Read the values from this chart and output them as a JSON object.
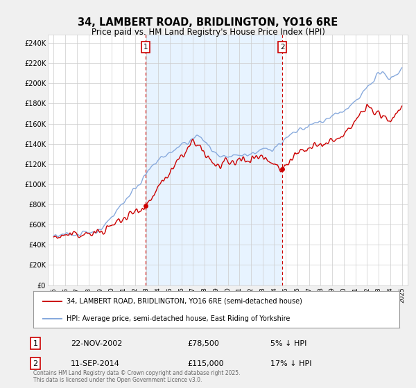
{
  "title": "34, LAMBERT ROAD, BRIDLINGTON, YO16 6RE",
  "subtitle": "Price paid vs. HM Land Registry's House Price Index (HPI)",
  "ylabel_ticks": [
    "£0",
    "£20K",
    "£40K",
    "£60K",
    "£80K",
    "£100K",
    "£120K",
    "£140K",
    "£160K",
    "£180K",
    "£200K",
    "£220K",
    "£240K"
  ],
  "ytick_vals": [
    0,
    20000,
    40000,
    60000,
    80000,
    100000,
    120000,
    140000,
    160000,
    180000,
    200000,
    220000,
    240000
  ],
  "ylim": [
    0,
    248000
  ],
  "xlim_years": [
    1994.5,
    2025.5
  ],
  "xtick_years": [
    1995,
    1996,
    1997,
    1998,
    1999,
    2000,
    2001,
    2002,
    2003,
    2004,
    2005,
    2006,
    2007,
    2008,
    2009,
    2010,
    2011,
    2012,
    2013,
    2014,
    2015,
    2016,
    2017,
    2018,
    2019,
    2020,
    2021,
    2022,
    2023,
    2024,
    2025
  ],
  "marker1": {
    "year": 2002.9,
    "value": 78500,
    "label": "1",
    "date": "22-NOV-2002",
    "price": "£78,500",
    "pct": "5% ↓ HPI"
  },
  "marker2": {
    "year": 2014.7,
    "value": 115000,
    "label": "2",
    "date": "11-SEP-2014",
    "price": "£115,000",
    "pct": "17% ↓ HPI"
  },
  "legend_line1": "34, LAMBERT ROAD, BRIDLINGTON, YO16 6RE (semi-detached house)",
  "legend_line2": "HPI: Average price, semi-detached house, East Riding of Yorkshire",
  "footnote": "Contains HM Land Registry data © Crown copyright and database right 2025.\nThis data is licensed under the Open Government Licence v3.0.",
  "red_color": "#cc0000",
  "blue_color": "#88aadd",
  "shade_color": "#ddeeff",
  "background_color": "#f0f0f0",
  "plot_bg_color": "#ffffff",
  "vline_color": "#cc0000",
  "grid_color": "#cccccc",
  "legend_border_color": "#999999"
}
